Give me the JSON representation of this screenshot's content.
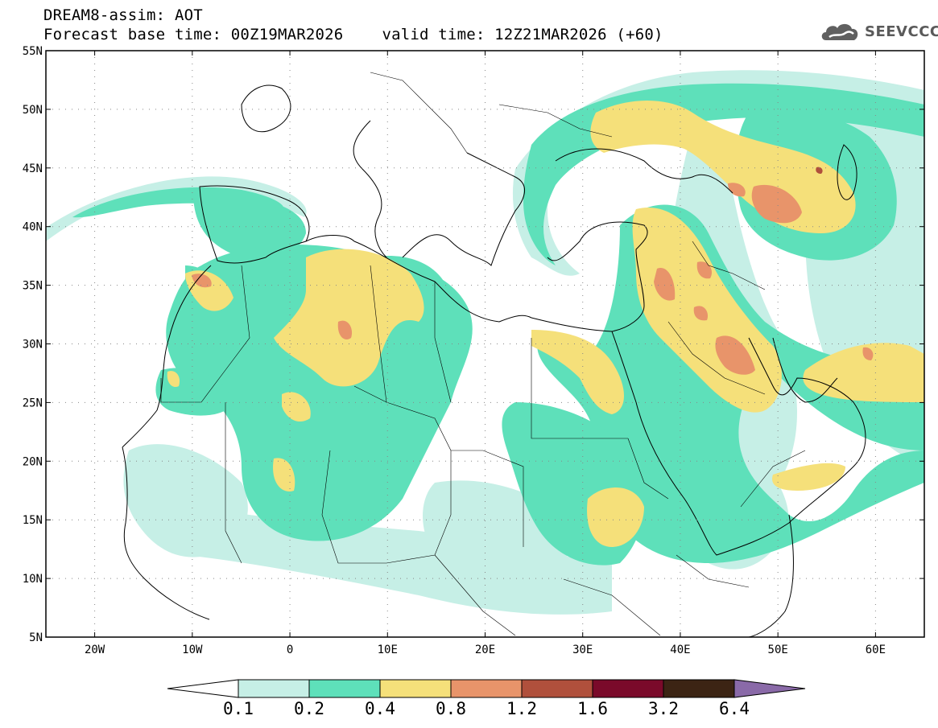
{
  "header": {
    "title": "DREAM8-assim: AOT",
    "base_time_label": "Forecast base time: 00Z19MAR2026",
    "valid_time_label": "valid time: 12Z21MAR2026 (+60)"
  },
  "logo": {
    "text": "SEEVCCC",
    "icon": "cloud-logo-icon"
  },
  "map": {
    "lon_range": [
      -25,
      65
    ],
    "lat_range": [
      5,
      55
    ],
    "lat_labels": [
      "55N",
      "50N",
      "45N",
      "40N",
      "35N",
      "30N",
      "25N",
      "20N",
      "15N",
      "10N",
      "5N"
    ],
    "lon_labels": [
      "20W",
      "10W",
      "0",
      "10E",
      "20E",
      "30E",
      "40E",
      "50E",
      "60E"
    ],
    "grid": "dotted"
  },
  "colorbar": {
    "labels": [
      "0.1",
      "0.2",
      "0.4",
      "0.8",
      "1.2",
      "1.6",
      "3.2",
      "6.4"
    ],
    "colors": [
      "#ffffff",
      "#c6efe6",
      "#5ee0ba",
      "#f5e07a",
      "#e8946a",
      "#b0503c",
      "#7a0a2a",
      "#3c2414",
      "#8a6aa8"
    ]
  }
}
